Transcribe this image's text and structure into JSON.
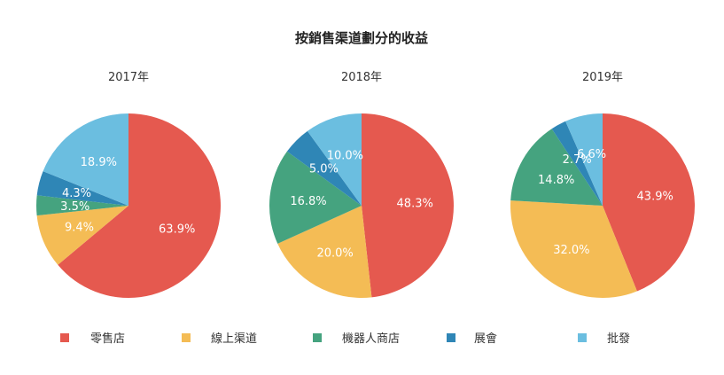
{
  "chart_data": {
    "type": "pie",
    "title": "按銷售渠道劃分的收益",
    "categories": [
      "零售店",
      "線上渠道",
      "機器人商店",
      "展會",
      "批發"
    ],
    "colors": [
      "#e5594f",
      "#f4bc55",
      "#45a37f",
      "#2f86b6",
      "#6bbee0"
    ],
    "legend": "bottom",
    "pies": [
      {
        "subtitle": "2017年",
        "values": [
          63.9,
          9.4,
          3.5,
          4.3,
          18.9
        ],
        "labels": [
          "63.9%",
          "9.4%",
          "3.5%",
          "4.3%",
          "18.9%"
        ]
      },
      {
        "subtitle": "2018年",
        "values": [
          48.3,
          20.0,
          16.8,
          5.0,
          10.0
        ],
        "labels": [
          "48.3%",
          "20.0%",
          "16.8%",
          "5.0%",
          "10.0%"
        ]
      },
      {
        "subtitle": "2019年",
        "values": [
          43.9,
          32.0,
          14.8,
          2.7,
          6.6
        ],
        "labels": [
          "43.9%",
          "32.0%",
          "14.8%",
          "2.7%",
          "6.6%"
        ]
      }
    ]
  }
}
